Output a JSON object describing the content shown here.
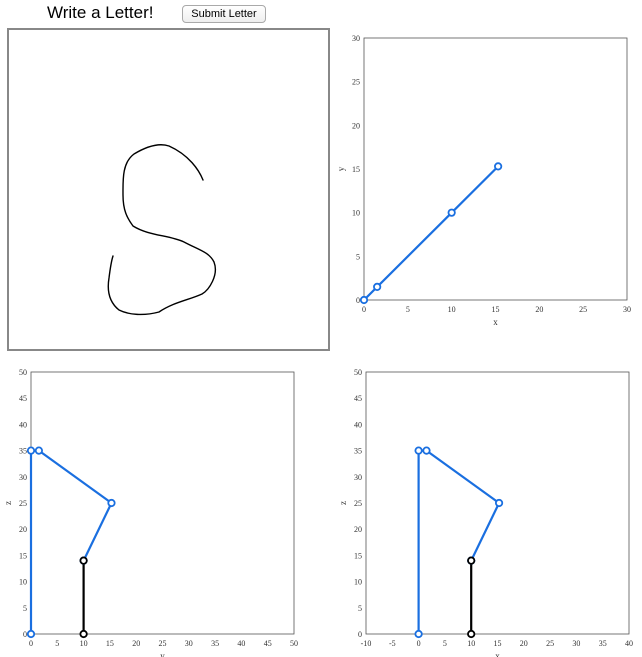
{
  "header": {
    "title": "Write a Letter!",
    "submit_label": "Submit Letter"
  },
  "drawing": {
    "stroke_color": "#000000"
  },
  "chart_data": [
    {
      "type": "line",
      "id": "xy",
      "xlabel": "x",
      "ylabel": "y",
      "xlim": [
        0,
        30
      ],
      "ylim": [
        0,
        30
      ],
      "xticks": [
        0,
        5,
        10,
        15,
        20,
        25,
        30
      ],
      "yticks": [
        0,
        5,
        10,
        15,
        20,
        25,
        30
      ],
      "series": [
        {
          "color": "#1a6fe0",
          "points": [
            [
              0,
              0
            ],
            [
              1.5,
              1.5
            ],
            [
              10,
              10
            ],
            [
              15.3,
              15.3
            ]
          ]
        }
      ]
    },
    {
      "type": "line",
      "id": "xz",
      "xlabel": "y",
      "ylabel": "z",
      "xlim": [
        0,
        50
      ],
      "ylim": [
        0,
        50
      ],
      "xticks": [
        0,
        5,
        10,
        15,
        20,
        25,
        30,
        35,
        40,
        45,
        50
      ],
      "yticks": [
        0,
        5,
        10,
        15,
        20,
        25,
        30,
        35,
        40,
        45,
        50
      ],
      "series": [
        {
          "color": "#1a6fe0",
          "points": [
            [
              0,
              0
            ],
            [
              0,
              35
            ],
            [
              1.5,
              35
            ],
            [
              15.3,
              25
            ],
            [
              10,
              14
            ]
          ]
        },
        {
          "color": "#000000",
          "points": [
            [
              10,
              14
            ],
            [
              10,
              0
            ]
          ]
        }
      ]
    },
    {
      "type": "line",
      "id": "yz",
      "xlabel": "x",
      "ylabel": "z",
      "xlim": [
        -10,
        40
      ],
      "ylim": [
        0,
        50
      ],
      "xticks": [
        -10,
        -5,
        0,
        5,
        10,
        15,
        20,
        25,
        30,
        35,
        40
      ],
      "yticks": [
        0,
        5,
        10,
        15,
        20,
        25,
        30,
        35,
        40,
        45,
        50
      ],
      "series": [
        {
          "color": "#1a6fe0",
          "points": [
            [
              0,
              0
            ],
            [
              0,
              35
            ],
            [
              1.5,
              35
            ],
            [
              15.3,
              25
            ],
            [
              10,
              14
            ]
          ]
        },
        {
          "color": "#000000",
          "points": [
            [
              10,
              14
            ],
            [
              10,
              0
            ]
          ]
        }
      ]
    }
  ]
}
